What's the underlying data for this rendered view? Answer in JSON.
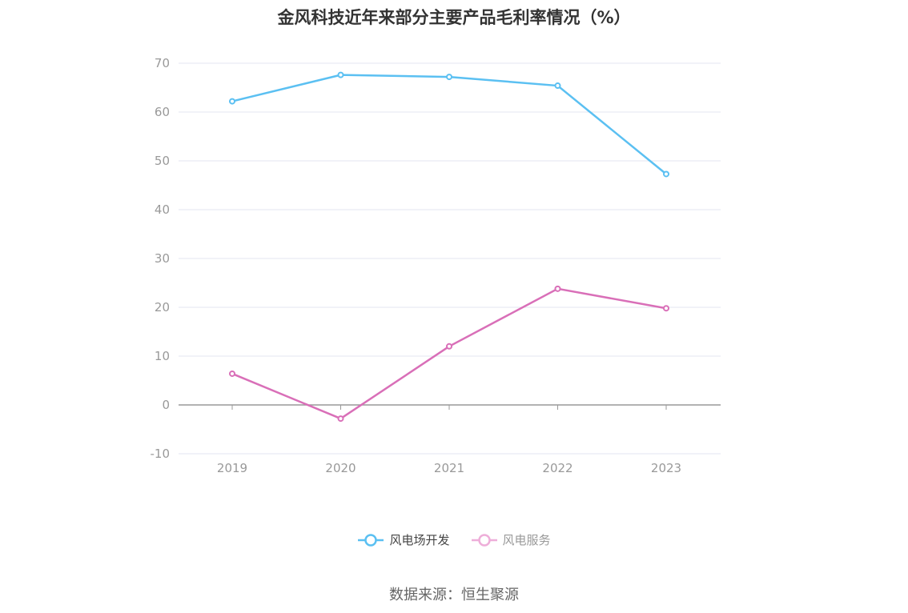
{
  "chart_data": {
    "type": "line",
    "title": "金风科技近年来部分主要产品毛利率情况（%）",
    "xlabel": "",
    "ylabel": "",
    "categories": [
      "2019",
      "2020",
      "2021",
      "2022",
      "2023"
    ],
    "ylim": [
      -10,
      70
    ],
    "yticks": [
      -10,
      0,
      10,
      20,
      30,
      40,
      50,
      60,
      70
    ],
    "grid": true,
    "legend_position": "bottom",
    "series": [
      {
        "name": "风电场开发",
        "color": "#5bc0f2",
        "values": [
          62.2,
          67.6,
          67.2,
          65.4,
          47.3
        ]
      },
      {
        "name": "风电服务",
        "color": "#d96fb8",
        "values": [
          6.4,
          -2.8,
          12.0,
          23.8,
          19.8
        ]
      }
    ]
  },
  "source": "数据来源：恒生聚源"
}
